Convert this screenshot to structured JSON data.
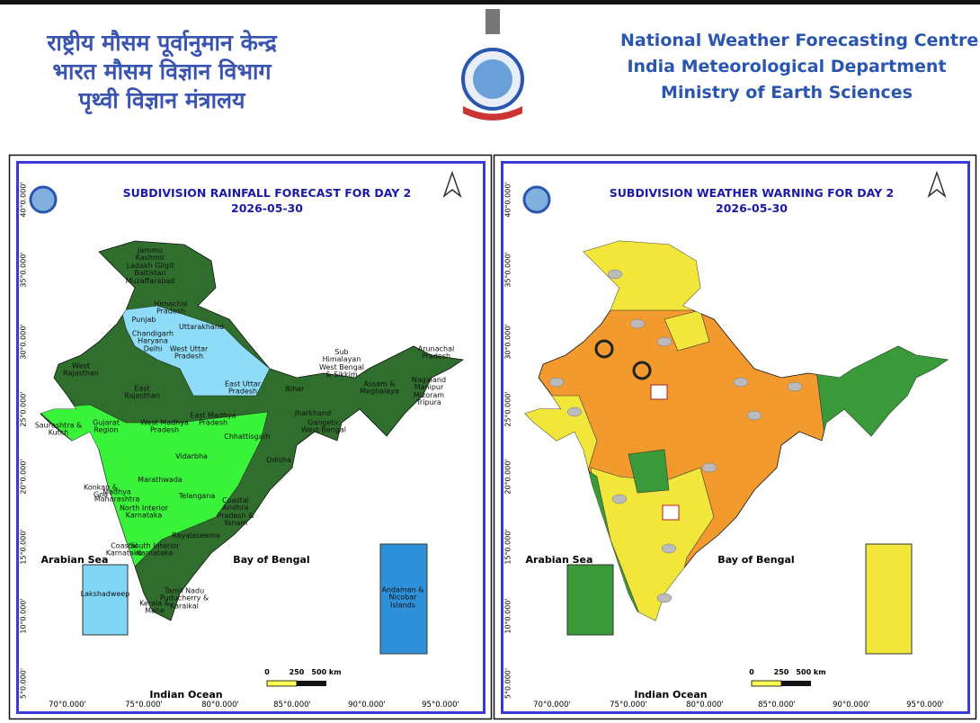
{
  "header": {
    "hindi_lines": [
      "राष्ट्रीय मौसम पूर्वानुमान केन्द्र",
      "भारत मौसम विज्ञान विभाग",
      "पृथ्वी विज्ञान मंत्रालय"
    ],
    "english_lines": [
      "National Weather Forecasting Centre",
      "India Meteorological Department",
      "Ministry of Earth Sciences"
    ]
  },
  "axes": {
    "latitude_labels": [
      "40°0.000'",
      "35°0.000'",
      "30°0.000'",
      "25°0.000'",
      "20°0.000'",
      "15°0.000'",
      "10°0.000'",
      "5°0.000'"
    ],
    "longitude_labels": [
      "70°0.000'",
      "75°0.000'",
      "80°0.000'",
      "85°0.000'",
      "90°0.000'",
      "95°0.000'"
    ]
  },
  "scale": [
    "0",
    "250",
    "500 km"
  ],
  "seas": {
    "arabian_sea": "Arabian Sea",
    "bay_of_bengal": "Bay of Bengal",
    "indian_ocean": "Indian Ocean"
  },
  "panels": [
    {
      "title": "SUBDIVISION RAINFALL FORECAST FOR DAY 2",
      "date": "2026-05-30",
      "region_labels": [
        "Jammu Kashmir Ladakh Gilgit Baltistan Muzaffarabad",
        "Himachal Pradesh",
        "Punjab",
        "Uttarakhand",
        "Chandigarh Haryana Delhi",
        "West Uttar Pradesh",
        "East Uttar Pradesh",
        "West Rajasthan",
        "East Rajasthan",
        "West Madhya Pradesh",
        "East Madhya Pradesh",
        "Bihar",
        "Sub Himalayan West Bengal & Sikkim",
        "Arunachal Pradesh",
        "Assam & Meghalaya",
        "Nagaland Manipur Mizoram Tripura",
        "Jharkhand",
        "Gangetic West Bengal",
        "Saurashtra & Kutch",
        "Gujarat Region",
        "Chhattisgarh",
        "Odisha",
        "Vidarbha",
        "Konkan & Goa",
        "Madhya Maharashtra",
        "Marathwada",
        "Telangana",
        "North Interior Karnataka",
        "Coastal Andhra Pradesh & Yanam",
        "Coastal Karnataka",
        "South Interior Karnataka",
        "Rayalaseema",
        "Tamil Nadu Puducherry & Karaikal",
        "Kerala & Mahe",
        "Lakshadweep",
        "Andaman & Nicobar Islands"
      ]
    },
    {
      "title": "SUBDIVISION WEATHER WARNING FOR DAY 2",
      "date": "2026-05-30"
    }
  ]
}
